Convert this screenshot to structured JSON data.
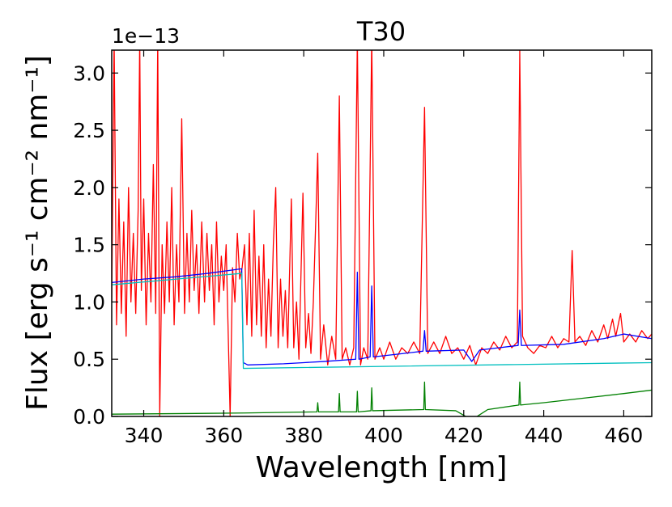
{
  "chart_data": {
    "type": "line",
    "title": "T30",
    "xlabel": "Wavelength [nm]",
    "ylabel": "Flux [erg s⁻¹ cm⁻² nm⁻¹]",
    "y_offset_label": "1e−13",
    "xlim": [
      332,
      467
    ],
    "ylim": [
      0,
      3.2
    ],
    "xticks": [
      340,
      360,
      380,
      400,
      420,
      440,
      460
    ],
    "yticks": [
      {
        "value": 0,
        "label": "0.0"
      },
      {
        "value": 0.5,
        "label": "0.5"
      },
      {
        "value": 1,
        "label": "1.0"
      },
      {
        "value": 1.5,
        "label": "1.5"
      },
      {
        "value": 2,
        "label": "2.0"
      },
      {
        "value": 2.5,
        "label": "2.5"
      },
      {
        "value": 3,
        "label": "3.0"
      }
    ],
    "series": [
      {
        "color": "#ff0000",
        "x": [
          332,
          332.6,
          333.2,
          333.8,
          334.4,
          335,
          335.6,
          336.2,
          336.8,
          337.4,
          338,
          338.6,
          339,
          339.4,
          340,
          340.6,
          341.2,
          341.8,
          342.4,
          343,
          343.5,
          344,
          344.6,
          345.2,
          345.8,
          346.4,
          347,
          347.6,
          348.2,
          348.8,
          349.5,
          350.2,
          350.8,
          351.4,
          352,
          352.6,
          353.2,
          353.8,
          354.5,
          355.2,
          355.8,
          356.4,
          357,
          357.6,
          358.2,
          358.8,
          359.4,
          360,
          360.6,
          361.2,
          361.6,
          362.2,
          362.8,
          363.4,
          364,
          364.6,
          365.2,
          365.8,
          366.4,
          367,
          367.6,
          368.2,
          368.8,
          369.4,
          370,
          370.6,
          371.2,
          371.8,
          372.4,
          373,
          373.6,
          374.2,
          374.8,
          375.4,
          376,
          376.9,
          377.5,
          378.2,
          378.8,
          379.8,
          380.5,
          381.2,
          381.8,
          382.4,
          383.5,
          384.2,
          385,
          386,
          387,
          388,
          388.9,
          389.6,
          390.5,
          391.5,
          392.5,
          393.4,
          394.2,
          395,
          396,
          397,
          397.8,
          399,
          400,
          401.5,
          403,
          404.5,
          406,
          407.5,
          409,
          410.2,
          411,
          412.5,
          414,
          415.5,
          417,
          418.5,
          420,
          421.5,
          423,
          424.5,
          426,
          427.5,
          429,
          430.5,
          432,
          433.4,
          434,
          434.7,
          436,
          437.5,
          439,
          440.5,
          442,
          443.5,
          445,
          446.3,
          447.1,
          447.8,
          449,
          450.5,
          452,
          453.5,
          455,
          456,
          457.2,
          458,
          459.2,
          460,
          461.5,
          463,
          464.5,
          466,
          467
        ],
        "values": [
          1.0,
          3.3,
          0.8,
          1.9,
          0.9,
          1.7,
          0.7,
          2.0,
          1.0,
          1.6,
          0.9,
          1.8,
          3.3,
          1.1,
          1.9,
          0.8,
          1.6,
          1.0,
          2.2,
          0.9,
          3.3,
          0.0,
          1.5,
          0.9,
          1.7,
          1.0,
          2.0,
          0.8,
          1.5,
          1.0,
          2.6,
          0.9,
          1.6,
          1.0,
          1.8,
          1.1,
          1.5,
          0.9,
          1.7,
          1.0,
          1.6,
          1.1,
          1.5,
          0.8,
          1.7,
          1.0,
          1.4,
          1.1,
          1.5,
          0.6,
          0.0,
          1.3,
          1.0,
          1.6,
          1.2,
          1.3,
          1.5,
          0.8,
          1.6,
          0.7,
          1.8,
          0.8,
          1.4,
          0.7,
          1.5,
          0.6,
          1.2,
          0.7,
          1.5,
          2.0,
          0.6,
          1.2,
          0.7,
          1.1,
          0.6,
          1.9,
          0.6,
          1.0,
          0.5,
          1.95,
          0.6,
          0.9,
          0.55,
          1.0,
          2.3,
          0.5,
          0.8,
          0.45,
          0.7,
          0.5,
          2.8,
          0.5,
          0.6,
          0.45,
          0.6,
          3.3,
          0.45,
          0.6,
          0.5,
          3.3,
          0.5,
          0.6,
          0.5,
          0.65,
          0.5,
          0.6,
          0.55,
          0.65,
          0.55,
          2.7,
          0.55,
          0.65,
          0.55,
          0.7,
          0.55,
          0.6,
          0.5,
          0.62,
          0.45,
          0.6,
          0.55,
          0.65,
          0.58,
          0.7,
          0.6,
          0.65,
          3.2,
          0.7,
          0.6,
          0.55,
          0.62,
          0.6,
          0.7,
          0.6,
          0.68,
          0.65,
          1.45,
          0.65,
          0.7,
          0.62,
          0.75,
          0.65,
          0.8,
          0.68,
          0.85,
          0.7,
          0.9,
          0.65,
          0.72,
          0.65,
          0.75,
          0.68,
          0.72
        ]
      },
      {
        "color": "#0000ff",
        "x": [
          332,
          340,
          348,
          356,
          364.5,
          364.9,
          366,
          375,
          380,
          385,
          393,
          393.4,
          393.8,
          396.6,
          397,
          397.4,
          405,
          409.8,
          410.2,
          410.6,
          420,
          422,
          424,
          433.6,
          434,
          434.4,
          445,
          455,
          460,
          467
        ],
        "values": [
          1.17,
          1.2,
          1.22,
          1.25,
          1.29,
          0.47,
          0.45,
          0.46,
          0.47,
          0.48,
          0.5,
          1.26,
          0.5,
          0.52,
          1.14,
          0.52,
          0.55,
          0.57,
          0.75,
          0.57,
          0.58,
          0.48,
          0.58,
          0.62,
          0.93,
          0.62,
          0.63,
          0.68,
          0.72,
          0.68
        ]
      },
      {
        "color": "#00bfbf",
        "x": [
          332,
          364.5,
          364.9,
          467
        ],
        "values": [
          1.15,
          1.25,
          0.42,
          0.47
        ]
      },
      {
        "color": "#008000",
        "x": [
          332,
          350,
          365,
          383.3,
          383.5,
          383.7,
          388.7,
          388.9,
          389.1,
          393.2,
          393.4,
          393.6,
          396.8,
          397,
          397.2,
          410,
          410.2,
          410.4,
          418,
          422,
          426,
          433.8,
          434,
          434.2,
          440,
          450,
          460,
          467
        ],
        "values": [
          0.02,
          0.025,
          0.03,
          0.04,
          0.12,
          0.04,
          0.04,
          0.2,
          0.04,
          0.04,
          0.22,
          0.04,
          0.05,
          0.25,
          0.05,
          0.06,
          0.3,
          0.06,
          0.05,
          -0.03,
          0.06,
          0.1,
          0.3,
          0.1,
          0.12,
          0.16,
          0.2,
          0.23
        ]
      }
    ]
  }
}
